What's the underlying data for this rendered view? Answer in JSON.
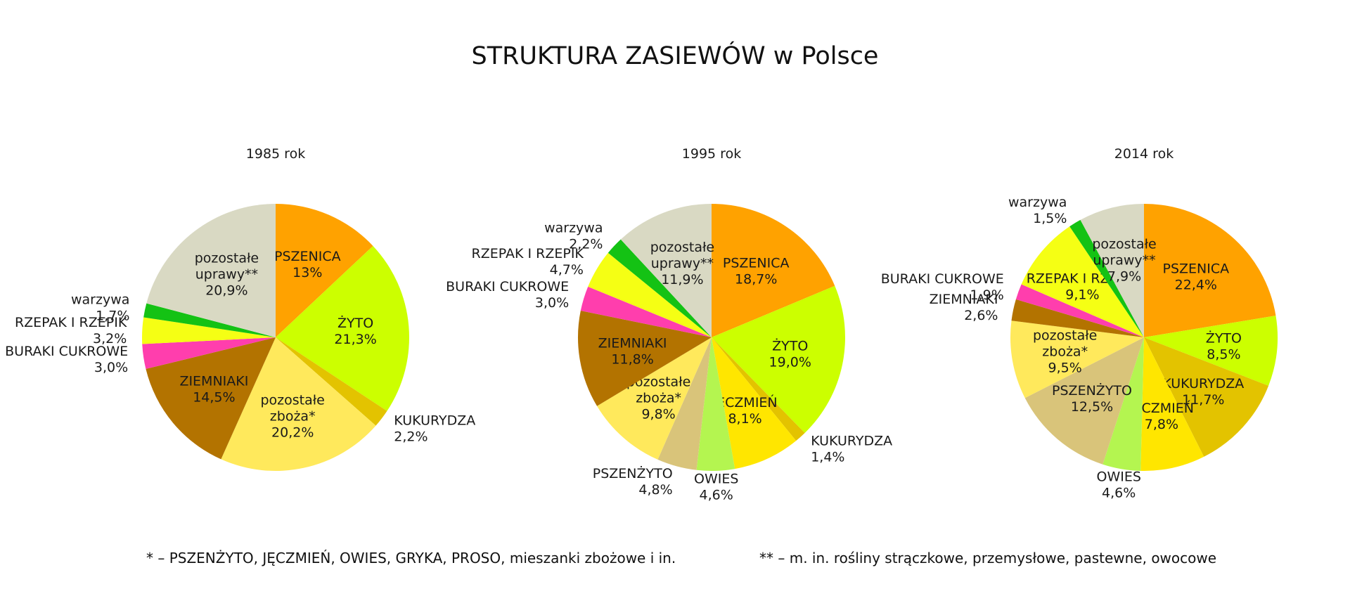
{
  "title": "STRUKTURA ZASIEWÓW w Polsce",
  "footnotes": {
    "single": "* – PSZENŻYTO, JĘCZMIEŃ, OWIES, GRYKA, PROSO, mieszanki zbożowe i in.",
    "double": "** – m. in. rośliny strączkowe, przemysłowe, pastewne, owocowe"
  },
  "chart_data": [
    {
      "type": "pie",
      "title": "1985 rok",
      "slices": [
        {
          "label": "PSZENICA",
          "value": "13%",
          "pct": 13.0,
          "color": "#FFA200"
        },
        {
          "label": "ŻYTO",
          "value": "21,3%",
          "pct": 21.3,
          "color": "#CCFF00"
        },
        {
          "label": "KUKURYDZA",
          "value": "2,2%",
          "pct": 2.2,
          "color": "#E3C300"
        },
        {
          "label": "pozostałe zboża*",
          "value": "20,2%",
          "pct": 20.2,
          "color": "#FFE95C"
        },
        {
          "label": "ZIEMNIAKI",
          "value": "14,5%",
          "pct": 14.5,
          "color": "#B37300"
        },
        {
          "label": "BURAKI CUKROWE",
          "value": "3,0%",
          "pct": 3.0,
          "color": "#FF3EAD"
        },
        {
          "label": "RZEPAK I RZEPIK",
          "value": "3,2%",
          "pct": 3.2,
          "color": "#F5FF14"
        },
        {
          "label": "warzywa",
          "value": "1,7%",
          "pct": 1.7,
          "color": "#14C214"
        },
        {
          "label": "pozostałe uprawy**",
          "value": "20,9%",
          "pct": 20.9,
          "color": "#D9D9C3"
        }
      ]
    },
    {
      "type": "pie",
      "title": "1995 rok",
      "slices": [
        {
          "label": "PSZENICA",
          "value": "18,7%",
          "pct": 18.7,
          "color": "#FFA200"
        },
        {
          "label": "ŻYTO",
          "value": "19,0%",
          "pct": 19.0,
          "color": "#CCFF00"
        },
        {
          "label": "KUKURYDZA",
          "value": "1,4%",
          "pct": 1.4,
          "color": "#E3C300"
        },
        {
          "label": "JĘCZMIEŃ",
          "value": "8,1%",
          "pct": 8.1,
          "color": "#FFE600"
        },
        {
          "label": "OWIES",
          "value": "4,6%",
          "pct": 4.6,
          "color": "#B4F550"
        },
        {
          "label": "PSZENŻYTO",
          "value": "4,8%",
          "pct": 4.8,
          "color": "#D9C47A"
        },
        {
          "label": "pozostałe zboża*",
          "value": "9,8%",
          "pct": 9.8,
          "color": "#FFE95C"
        },
        {
          "label": "ZIEMNIAKI",
          "value": "11,8%",
          "pct": 11.8,
          "color": "#B37300"
        },
        {
          "label": "BURAKI CUKROWE",
          "value": "3,0%",
          "pct": 3.0,
          "color": "#FF3EAD"
        },
        {
          "label": "RZEPAK I RZEPIK",
          "value": "4,7%",
          "pct": 4.7,
          "color": "#F5FF14"
        },
        {
          "label": "warzywa",
          "value": "2,2%",
          "pct": 2.2,
          "color": "#14C214"
        },
        {
          "label": "pozostałe uprawy**",
          "value": "11,9%",
          "pct": 11.9,
          "color": "#D9D9C3"
        }
      ]
    },
    {
      "type": "pie",
      "title": "2014 rok",
      "slices": [
        {
          "label": "PSZENICA",
          "value": "22,4%",
          "pct": 22.4,
          "color": "#FFA200"
        },
        {
          "label": "ŻYTO",
          "value": "8,5%",
          "pct": 8.5,
          "color": "#CCFF00"
        },
        {
          "label": "KUKURYDZA",
          "value": "11,7%",
          "pct": 11.7,
          "color": "#E3C300"
        },
        {
          "label": "JĘCZMIEŃ",
          "value": "7,8%",
          "pct": 7.8,
          "color": "#FFE600"
        },
        {
          "label": "OWIES",
          "value": "4,6%",
          "pct": 4.6,
          "color": "#B4F550"
        },
        {
          "label": "PSZENŻYTO",
          "value": "12,5%",
          "pct": 12.5,
          "color": "#D9C47A"
        },
        {
          "label": "pozostałe zboża*",
          "value": "9,5%",
          "pct": 9.5,
          "color": "#FFE95C"
        },
        {
          "label": "ZIEMNIAKI",
          "value": "2,6%",
          "pct": 2.6,
          "color": "#B37300"
        },
        {
          "label": "BURAKI CUKROWE",
          "value": "1,9%",
          "pct": 1.9,
          "color": "#FF3EAD"
        },
        {
          "label": "RZEPAK I RZEPIK",
          "value": "9,1%",
          "pct": 9.1,
          "color": "#F5FF14"
        },
        {
          "label": "warzywa",
          "value": "1,5%",
          "pct": 1.5,
          "color": "#14C214"
        },
        {
          "label": "pozostałe uprawy**",
          "value": "7,9%",
          "pct": 7.9,
          "color": "#D9D9C3"
        }
      ]
    }
  ]
}
